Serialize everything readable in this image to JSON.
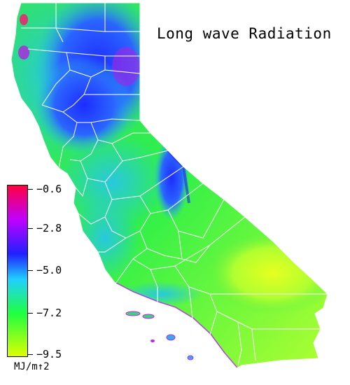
{
  "title": "Long wave Radiation",
  "legend": {
    "ticks": [
      "−0.6",
      "−2.8",
      "−5.0",
      "−7.2",
      "−9.5"
    ],
    "units": "MJ/m↑2",
    "gradient_stops": [
      "#ff0040",
      "#c000ff",
      "#2020ff",
      "#20d0ff",
      "#20ff40",
      "#ddff00"
    ]
  },
  "colors": {
    "purple": "#b020e0",
    "deep_blue": "#1e3cff",
    "blue": "#2a64ff",
    "cyan": "#28bce6",
    "teal": "#2ad8b4",
    "green": "#30f048",
    "lime": "#a0ff30",
    "yellow": "#e6ff20",
    "county_line": "#ffffff"
  }
}
